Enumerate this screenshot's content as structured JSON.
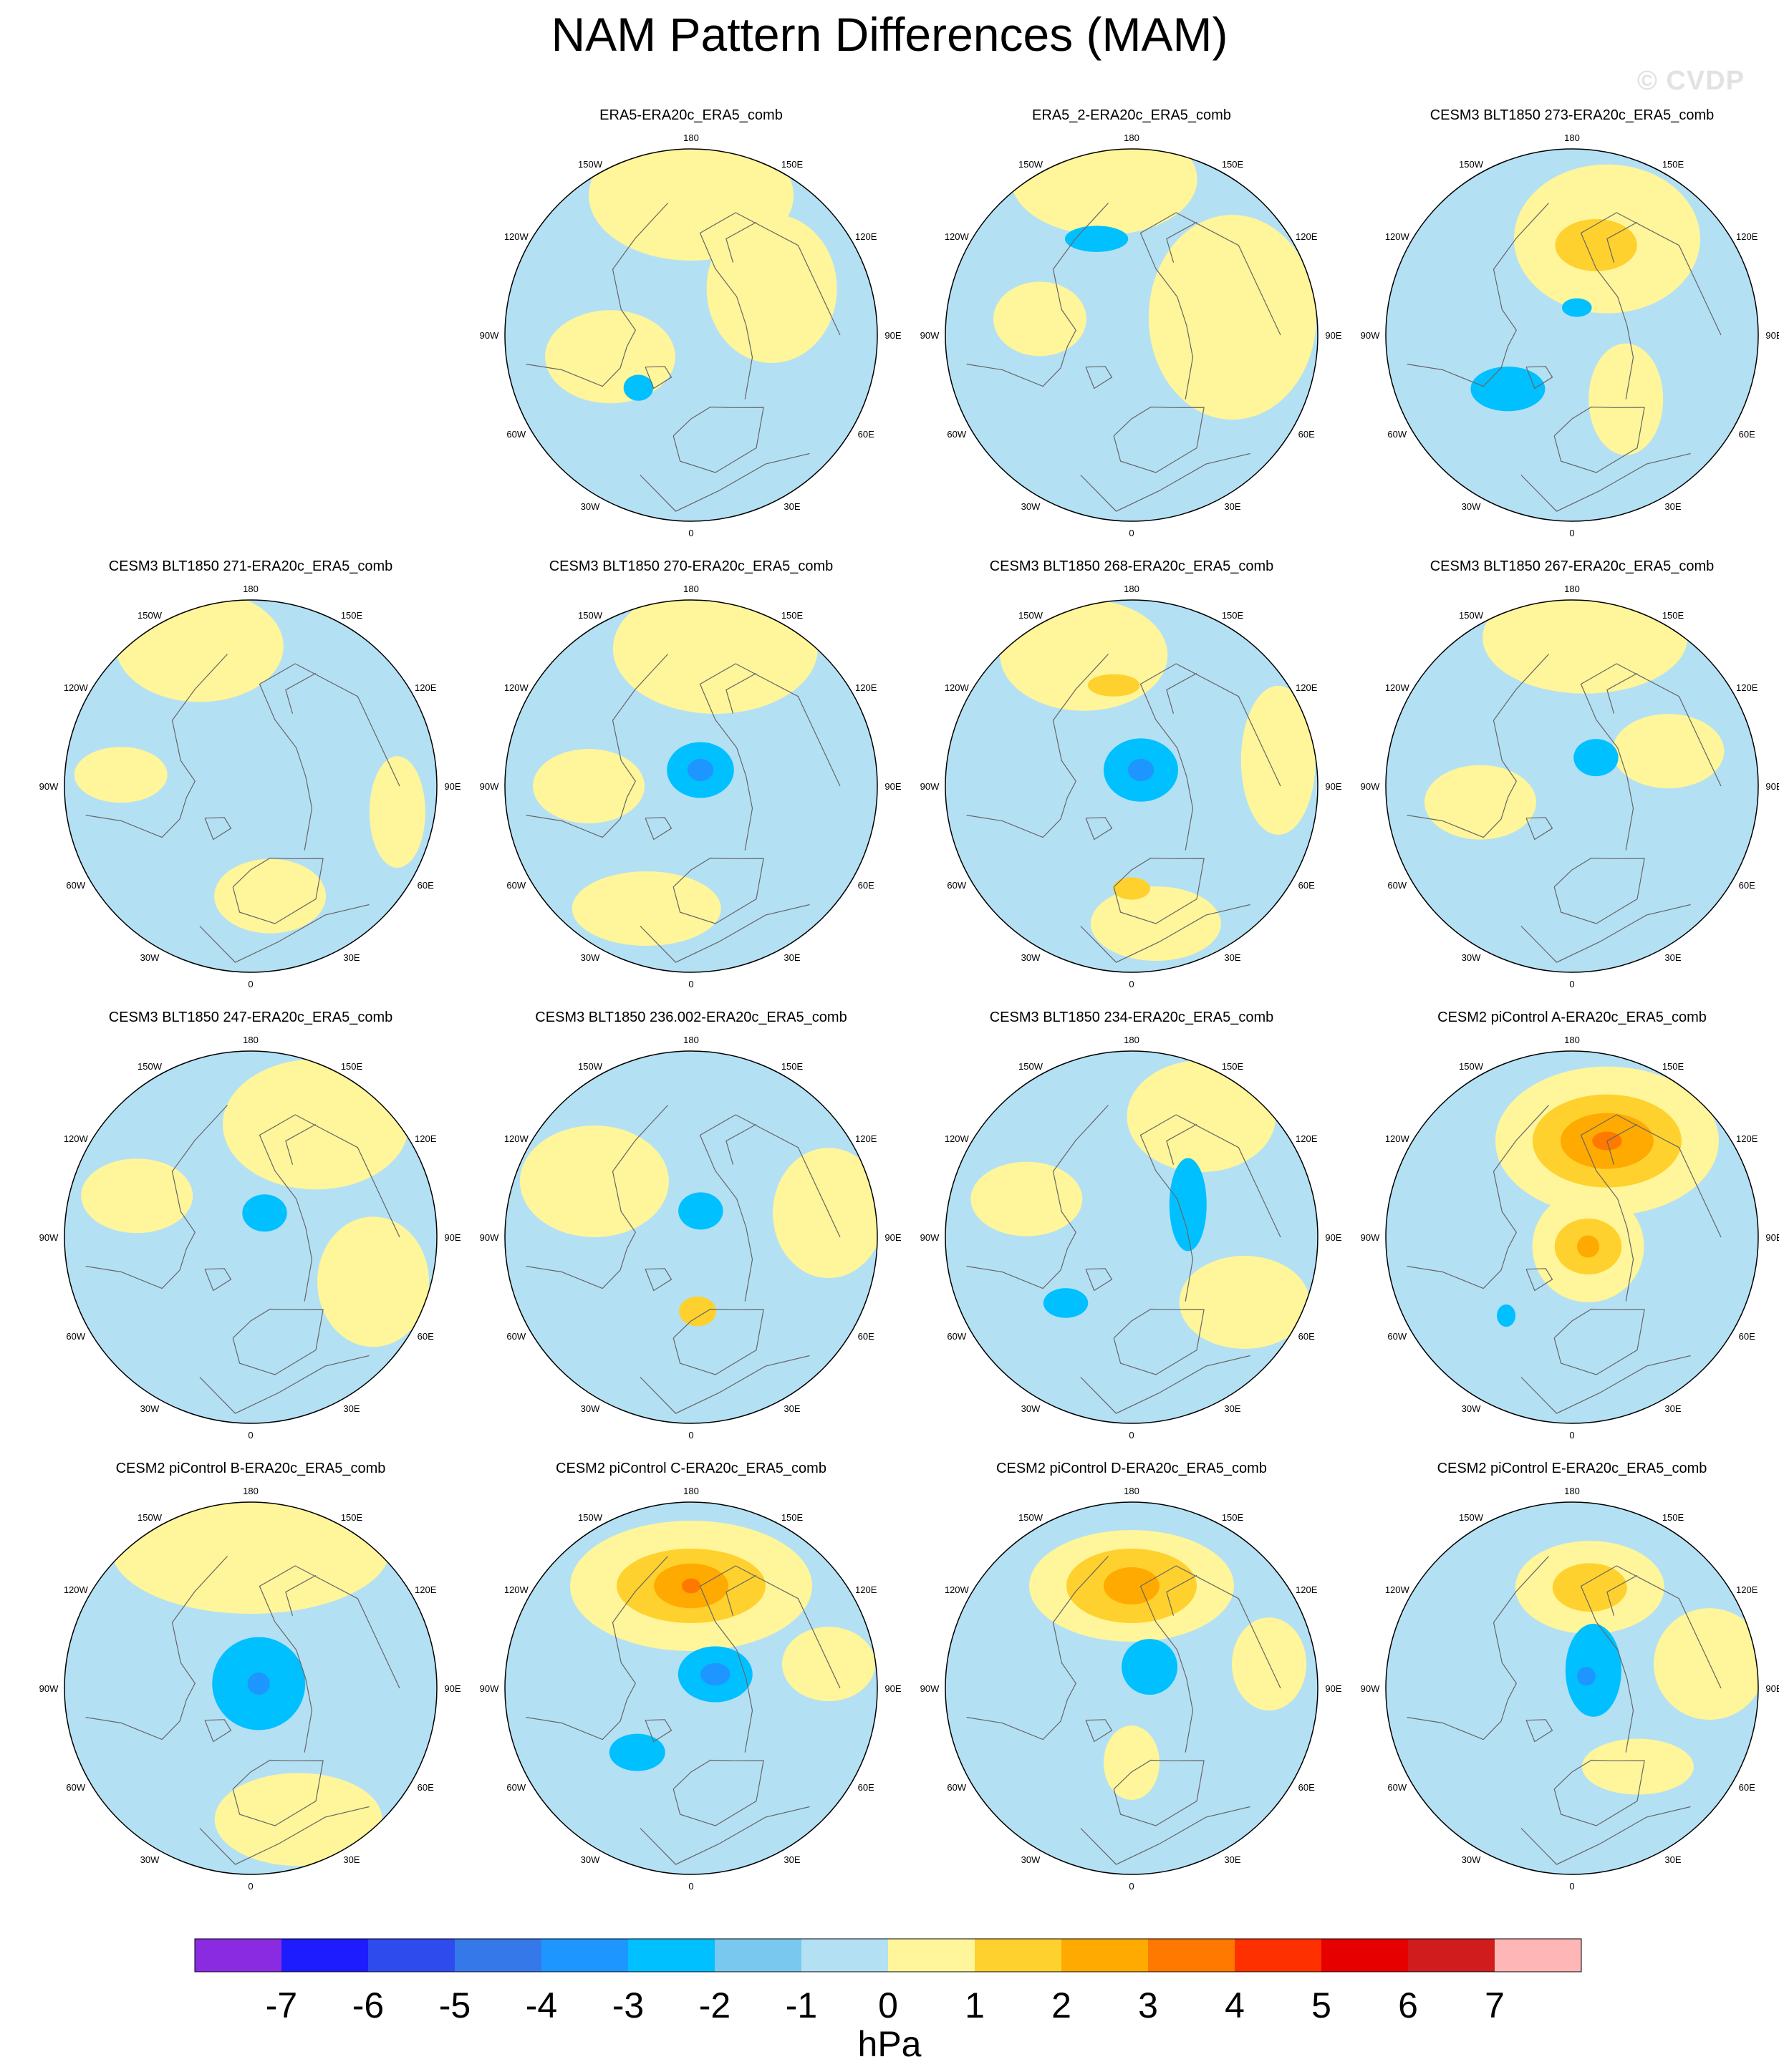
{
  "title": "NAM Pattern Differences (MAM)",
  "watermark": "© CVDP",
  "units_label": "hPa",
  "longitude_labels": [
    "180",
    "150E",
    "120E",
    "90E",
    "60E",
    "30E",
    "0",
    "30W",
    "60W",
    "90W",
    "120W",
    "150W"
  ],
  "colorbar": {
    "colors": [
      "#8a2be2",
      "#1c1cff",
      "#2e4bee",
      "#3578ea",
      "#1e96ff",
      "#00c0ff",
      "#78c8f0",
      "#b4e0f4",
      "#fff59a",
      "#ffd12e",
      "#ffaa00",
      "#ff7800",
      "#ff3000",
      "#e60000",
      "#d01c1c",
      "#ffb6b6"
    ],
    "ticks": [
      "-7",
      "-6",
      "-5",
      "-4",
      "-3",
      "-2",
      "-1",
      "0",
      "1",
      "2",
      "3",
      "4",
      "5",
      "6",
      "7"
    ]
  },
  "panels": [
    {
      "title": "ERA5-ERA20c_ERA5_comb",
      "blobs": [
        {
          "lon": -180,
          "r": 0.75,
          "rx": 0.55,
          "ry": 0.35,
          "level": 1
        },
        {
          "lon": 120,
          "r": 0.5,
          "rx": 0.35,
          "ry": 0.4,
          "level": 1
        },
        {
          "lon": -75,
          "r": 0.45,
          "rx": 0.35,
          "ry": 0.25,
          "level": 1
        },
        {
          "lon": -45,
          "r": 0.4,
          "rx": 0.08,
          "ry": 0.07,
          "level": -2
        }
      ]
    },
    {
      "title": "ERA5_2-ERA20c_ERA5_comb",
      "blobs": [
        {
          "lon": -170,
          "r": 0.85,
          "rx": 0.5,
          "ry": 0.3,
          "level": 1
        },
        {
          "lon": 100,
          "r": 0.55,
          "rx": 0.45,
          "ry": 0.55,
          "level": 1
        },
        {
          "lon": -100,
          "r": 0.5,
          "rx": 0.25,
          "ry": 0.2,
          "level": 1
        },
        {
          "lon": -160,
          "r": 0.55,
          "rx": 0.17,
          "ry": 0.07,
          "level": -2
        }
      ]
    },
    {
      "title": "CESM3 BLT1850 273-ERA20c_ERA5_comb",
      "blobs": [
        {
          "lon": 160,
          "r": 0.55,
          "rx": 0.5,
          "ry": 0.4,
          "level": 1
        },
        {
          "lon": 165,
          "r": 0.5,
          "rx": 0.22,
          "ry": 0.14,
          "level": 2
        },
        {
          "lon": 40,
          "r": 0.45,
          "rx": 0.2,
          "ry": 0.3,
          "level": 1
        },
        {
          "lon": -50,
          "r": 0.45,
          "rx": 0.2,
          "ry": 0.12,
          "level": -2
        },
        {
          "lon": 170,
          "r": 0.15,
          "rx": 0.08,
          "ry": 0.05,
          "level": -2
        }
      ]
    },
    {
      "title": "CESM3 BLT1850 271-ERA20c_ERA5_comb",
      "blobs": [
        {
          "lon": -160,
          "r": 0.8,
          "rx": 0.45,
          "ry": 0.3,
          "level": 1
        },
        {
          "lon": 10,
          "r": 0.6,
          "rx": 0.3,
          "ry": 0.2,
          "level": 1
        },
        {
          "lon": -95,
          "r": 0.7,
          "rx": 0.25,
          "ry": 0.15,
          "level": 1
        },
        {
          "lon": 80,
          "r": 0.8,
          "rx": 0.15,
          "ry": 0.3,
          "level": 1
        }
      ]
    },
    {
      "title": "CESM3 BLT1850 270-ERA20c_ERA5_comb",
      "blobs": [
        {
          "lon": 170,
          "r": 0.75,
          "rx": 0.55,
          "ry": 0.35,
          "level": 1
        },
        {
          "lon": -90,
          "r": 0.55,
          "rx": 0.3,
          "ry": 0.2,
          "level": 1
        },
        {
          "lon": -20,
          "r": 0.7,
          "rx": 0.4,
          "ry": 0.2,
          "level": 1
        },
        {
          "lon": 150,
          "r": 0.1,
          "rx": 0.18,
          "ry": 0.15,
          "level": -2
        },
        {
          "lon": 150,
          "r": 0.1,
          "rx": 0.07,
          "ry": 0.06,
          "level": -3
        }
      ]
    },
    {
      "title": "CESM3 BLT1850 268-ERA20c_ERA5_comb",
      "blobs": [
        {
          "lon": -160,
          "r": 0.75,
          "rx": 0.45,
          "ry": 0.3,
          "level": 1
        },
        {
          "lon": -170,
          "r": 0.55,
          "rx": 0.14,
          "ry": 0.06,
          "level": 2
        },
        {
          "lon": 10,
          "r": 0.75,
          "rx": 0.35,
          "ry": 0.2,
          "level": 1
        },
        {
          "lon": 0,
          "r": 0.55,
          "rx": 0.1,
          "ry": 0.06,
          "level": 2
        },
        {
          "lon": 100,
          "r": 0.8,
          "rx": 0.2,
          "ry": 0.4,
          "level": 1
        },
        {
          "lon": 150,
          "r": 0.1,
          "rx": 0.2,
          "ry": 0.17,
          "level": -2
        },
        {
          "lon": 150,
          "r": 0.1,
          "rx": 0.07,
          "ry": 0.06,
          "level": -3
        }
      ]
    },
    {
      "title": "CESM3 BLT1850 267-ERA20c_ERA5_comb",
      "blobs": [
        {
          "lon": 175,
          "r": 0.8,
          "rx": 0.55,
          "ry": 0.3,
          "level": 1
        },
        {
          "lon": -80,
          "r": 0.5,
          "rx": 0.3,
          "ry": 0.2,
          "level": 1
        },
        {
          "lon": 110,
          "r": 0.55,
          "rx": 0.3,
          "ry": 0.2,
          "level": 1
        },
        {
          "lon": 140,
          "r": 0.2,
          "rx": 0.12,
          "ry": 0.1,
          "level": -2
        }
      ]
    },
    {
      "title": "CESM3 BLT1850 247-ERA20c_ERA5_comb",
      "blobs": [
        {
          "lon": 150,
          "r": 0.7,
          "rx": 0.5,
          "ry": 0.35,
          "level": 1
        },
        {
          "lon": -110,
          "r": 0.65,
          "rx": 0.3,
          "ry": 0.2,
          "level": 1
        },
        {
          "lon": 70,
          "r": 0.7,
          "rx": 0.3,
          "ry": 0.35,
          "level": 1
        },
        {
          "lon": 150,
          "r": 0.15,
          "rx": 0.12,
          "ry": 0.1,
          "level": -2
        }
      ]
    },
    {
      "title": "CESM3 BLT1850 236.002-ERA20c_ERA5_comb",
      "blobs": [
        {
          "lon": -120,
          "r": 0.6,
          "rx": 0.4,
          "ry": 0.3,
          "level": 1
        },
        {
          "lon": 100,
          "r": 0.75,
          "rx": 0.3,
          "ry": 0.35,
          "level": 1
        },
        {
          "lon": 5,
          "r": 0.4,
          "rx": 0.1,
          "ry": 0.08,
          "level": 2
        },
        {
          "lon": 160,
          "r": 0.15,
          "rx": 0.12,
          "ry": 0.1,
          "level": -2
        }
      ]
    },
    {
      "title": "CESM3 BLT1850 234-ERA20c_ERA5_comb",
      "blobs": [
        {
          "lon": 150,
          "r": 0.75,
          "rx": 0.4,
          "ry": 0.3,
          "level": 1
        },
        {
          "lon": -110,
          "r": 0.6,
          "rx": 0.3,
          "ry": 0.2,
          "level": 1
        },
        {
          "lon": 60,
          "r": 0.7,
          "rx": 0.35,
          "ry": 0.25,
          "level": 1
        },
        {
          "lon": 120,
          "r": 0.35,
          "rx": 0.1,
          "ry": 0.25,
          "level": -2
        },
        {
          "lon": -45,
          "r": 0.5,
          "rx": 0.12,
          "ry": 0.08,
          "level": -2
        }
      ]
    },
    {
      "title": "CESM2 piControl A-ERA20c_ERA5_comb",
      "blobs": [
        {
          "lon": 160,
          "r": 0.55,
          "rx": 0.6,
          "ry": 0.4,
          "level": 1
        },
        {
          "lon": 160,
          "r": 0.55,
          "rx": 0.4,
          "ry": 0.25,
          "level": 2
        },
        {
          "lon": 160,
          "r": 0.55,
          "rx": 0.25,
          "ry": 0.15,
          "level": 3
        },
        {
          "lon": 160,
          "r": 0.55,
          "rx": 0.08,
          "ry": 0.05,
          "level": 4
        },
        {
          "lon": 60,
          "r": 0.1,
          "rx": 0.3,
          "ry": 0.3,
          "level": 1
        },
        {
          "lon": 60,
          "r": 0.1,
          "rx": 0.18,
          "ry": 0.15,
          "level": 2
        },
        {
          "lon": 60,
          "r": 0.1,
          "rx": 0.06,
          "ry": 0.06,
          "level": 3
        },
        {
          "lon": -40,
          "r": 0.55,
          "rx": 0.05,
          "ry": 0.06,
          "level": -2
        }
      ]
    },
    {
      "title": "CESM2 piControl B-ERA20c_ERA5_comb",
      "blobs": [
        {
          "lon": 180,
          "r": 0.75,
          "rx": 0.75,
          "ry": 0.35,
          "level": 1
        },
        {
          "lon": 20,
          "r": 0.75,
          "rx": 0.45,
          "ry": 0.25,
          "level": 1
        },
        {
          "lon": 120,
          "r": 0.05,
          "rx": 0.25,
          "ry": 0.25,
          "level": -2
        },
        {
          "lon": 120,
          "r": 0.05,
          "rx": 0.06,
          "ry": 0.06,
          "level": -3
        }
      ]
    },
    {
      "title": "CESM2 piControl C-ERA20c_ERA5_comb",
      "blobs": [
        {
          "lon": 180,
          "r": 0.55,
          "rx": 0.65,
          "ry": 0.35,
          "level": 1
        },
        {
          "lon": 180,
          "r": 0.55,
          "rx": 0.4,
          "ry": 0.2,
          "level": 2
        },
        {
          "lon": 180,
          "r": 0.55,
          "rx": 0.2,
          "ry": 0.12,
          "level": 3
        },
        {
          "lon": 180,
          "r": 0.55,
          "rx": 0.05,
          "ry": 0.04,
          "level": 4
        },
        {
          "lon": 120,
          "r": 0.15,
          "rx": 0.2,
          "ry": 0.15,
          "level": -2
        },
        {
          "lon": 120,
          "r": 0.15,
          "rx": 0.08,
          "ry": 0.06,
          "level": -3
        },
        {
          "lon": -40,
          "r": 0.45,
          "rx": 0.15,
          "ry": 0.1,
          "level": -2
        },
        {
          "lon": 100,
          "r": 0.75,
          "rx": 0.25,
          "ry": 0.2,
          "level": 1
        }
      ]
    },
    {
      "title": "CESM2 piControl D-ERA20c_ERA5_comb",
      "blobs": [
        {
          "lon": 180,
          "r": 0.55,
          "rx": 0.55,
          "ry": 0.3,
          "level": 1
        },
        {
          "lon": 180,
          "r": 0.55,
          "rx": 0.35,
          "ry": 0.2,
          "level": 2
        },
        {
          "lon": 180,
          "r": 0.55,
          "rx": 0.15,
          "ry": 0.1,
          "level": 3
        },
        {
          "lon": 0,
          "r": 0.4,
          "rx": 0.15,
          "ry": 0.2,
          "level": 1
        },
        {
          "lon": 100,
          "r": 0.75,
          "rx": 0.2,
          "ry": 0.25,
          "level": 1
        },
        {
          "lon": 140,
          "r": 0.15,
          "rx": 0.15,
          "ry": 0.15,
          "level": -2
        }
      ]
    },
    {
      "title": "CESM2 piControl E-ERA20c_ERA5_comb",
      "blobs": [
        {
          "lon": 170,
          "r": 0.55,
          "rx": 0.4,
          "ry": 0.25,
          "level": 1
        },
        {
          "lon": 170,
          "r": 0.55,
          "rx": 0.2,
          "ry": 0.13,
          "level": 2
        },
        {
          "lon": 40,
          "r": 0.55,
          "rx": 0.3,
          "ry": 0.15,
          "level": 1
        },
        {
          "lon": 100,
          "r": 0.75,
          "rx": 0.3,
          "ry": 0.3,
          "level": 1
        },
        {
          "lon": 130,
          "r": 0.15,
          "rx": 0.15,
          "ry": 0.25,
          "level": -2
        },
        {
          "lon": 130,
          "r": 0.1,
          "rx": 0.05,
          "ry": 0.05,
          "level": -3
        }
      ]
    }
  ]
}
